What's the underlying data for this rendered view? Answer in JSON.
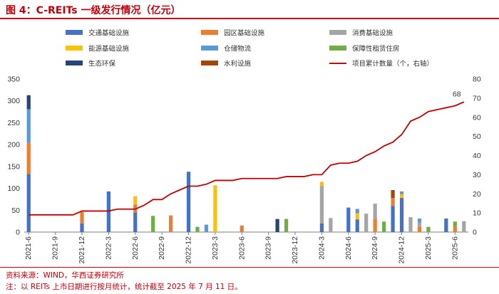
{
  "figure": {
    "title": "图 4：C-REITs 一级发行情况（亿元）",
    "source": "资料来源：WIND，华西证券研究所",
    "note": "注：以 REITs 上市日期进行按月统计，统计截至 2025 年 7 月 11 日。"
  },
  "chart_data": {
    "type": "bar",
    "stacked": true,
    "x_tick_labels": [
      "2021-6",
      "2021-9",
      "2021-12",
      "2022-3",
      "2022-6",
      "2022-9",
      "2022-12",
      "2023-3",
      "2023-6",
      "2023-9",
      "2023-12",
      "2024-3",
      "2024-6",
      "2024-9",
      "2024-12",
      "2025-3",
      "2025-6"
    ],
    "months": [
      "2021-6",
      "2021-7",
      "2021-8",
      "2021-9",
      "2021-10",
      "2021-11",
      "2021-12",
      "2022-1",
      "2022-2",
      "2022-3",
      "2022-4",
      "2022-5",
      "2022-6",
      "2022-7",
      "2022-8",
      "2022-9",
      "2022-10",
      "2022-11",
      "2022-12",
      "2023-1",
      "2023-2",
      "2023-3",
      "2023-4",
      "2023-5",
      "2023-6",
      "2023-7",
      "2023-8",
      "2023-9",
      "2023-10",
      "2023-11",
      "2023-12",
      "2024-1",
      "2024-2",
      "2024-3",
      "2024-4",
      "2024-5",
      "2024-6",
      "2024-7",
      "2024-8",
      "2024-9",
      "2024-10",
      "2024-11",
      "2024-12",
      "2025-1",
      "2025-2",
      "2025-3",
      "2025-4",
      "2025-5",
      "2025-6",
      "2025-7"
    ],
    "y_left": {
      "min": 0,
      "max": 350,
      "ticks": [
        0,
        50,
        100,
        150,
        200,
        250,
        300,
        350
      ]
    },
    "y_right": {
      "min": 0,
      "max": 80,
      "ticks": [
        0,
        10,
        20,
        30,
        40,
        50,
        60,
        70,
        80
      ]
    },
    "series": [
      {
        "name": "交通基础设施",
        "color": "#4472c4",
        "values": [
          133,
          0,
          0,
          0,
          0,
          0,
          20,
          0,
          0,
          93,
          0,
          0,
          45,
          0,
          0,
          0,
          0,
          0,
          138,
          0,
          0,
          0,
          0,
          0,
          0,
          0,
          0,
          0,
          0,
          0,
          0,
          0,
          0,
          20,
          0,
          0,
          56,
          29,
          0,
          0,
          0,
          60,
          78,
          0,
          0,
          0,
          0,
          31,
          0,
          0
        ]
      },
      {
        "name": "园区基础设施",
        "color": "#ed7d31",
        "values": [
          71,
          0,
          0,
          0,
          0,
          0,
          26,
          0,
          0,
          0,
          0,
          0,
          18,
          0,
          0,
          0,
          38,
          0,
          0,
          0,
          0,
          0,
          0,
          0,
          15,
          0,
          0,
          0,
          0,
          0,
          0,
          0,
          0,
          0,
          0,
          0,
          0,
          0,
          0,
          30,
          0,
          18,
          0,
          0,
          12,
          0,
          0,
          0,
          12,
          0
        ]
      },
      {
        "name": "消费基础设施",
        "color": "#a5a5a5",
        "values": [
          0,
          0,
          0,
          0,
          0,
          0,
          0,
          0,
          0,
          0,
          0,
          0,
          0,
          0,
          0,
          0,
          0,
          0,
          0,
          0,
          0,
          0,
          0,
          0,
          0,
          0,
          0,
          0,
          0,
          0,
          0,
          0,
          0,
          85,
          32,
          0,
          0,
          0,
          42,
          35,
          0,
          0,
          0,
          34,
          10,
          0,
          0,
          0,
          0,
          25
        ]
      },
      {
        "name": "能源基础设施",
        "color": "#ffc000",
        "values": [
          0,
          0,
          0,
          0,
          0,
          0,
          0,
          0,
          0,
          0,
          0,
          0,
          19,
          0,
          0,
          0,
          0,
          0,
          0,
          0,
          0,
          107,
          0,
          0,
          0,
          0,
          0,
          0,
          0,
          0,
          0,
          0,
          0,
          10,
          0,
          0,
          0,
          14,
          0,
          0,
          0,
          0,
          9,
          0,
          0,
          0,
          0,
          0,
          0,
          0
        ]
      },
      {
        "name": "仓储物流",
        "color": "#5b9bd5",
        "values": [
          77,
          0,
          0,
          0,
          0,
          0,
          0,
          0,
          0,
          0,
          0,
          0,
          0,
          0,
          0,
          0,
          0,
          0,
          0,
          0,
          17,
          0,
          0,
          0,
          0,
          0,
          0,
          0,
          0,
          0,
          0,
          0,
          0,
          0,
          0,
          0,
          0,
          10,
          0,
          0,
          0,
          0,
          6,
          0,
          9,
          0,
          0,
          0,
          0,
          0
        ]
      },
      {
        "name": "保障性租赁住房",
        "color": "#70ad47",
        "values": [
          0,
          0,
          0,
          0,
          0,
          0,
          0,
          0,
          0,
          0,
          0,
          0,
          0,
          0,
          37,
          0,
          0,
          0,
          0,
          12,
          0,
          0,
          0,
          0,
          0,
          0,
          0,
          0,
          0,
          30,
          0,
          0,
          0,
          0,
          0,
          0,
          0,
          0,
          0,
          0,
          24,
          0,
          0,
          0,
          0,
          12,
          0,
          0,
          12,
          0
        ]
      },
      {
        "name": "生态环保",
        "color": "#264478",
        "values": [
          32,
          0,
          0,
          0,
          0,
          0,
          0,
          0,
          0,
          0,
          0,
          0,
          0,
          0,
          0,
          0,
          0,
          0,
          0,
          0,
          0,
          0,
          0,
          0,
          0,
          0,
          0,
          0,
          30,
          0,
          0,
          0,
          0,
          0,
          0,
          0,
          0,
          0,
          0,
          0,
          0,
          0,
          0,
          0,
          0,
          0,
          0,
          0,
          0,
          0
        ]
      },
      {
        "name": "水利设施",
        "color": "#9e480e",
        "values": [
          0,
          0,
          0,
          0,
          0,
          0,
          0,
          0,
          0,
          0,
          0,
          0,
          0,
          0,
          0,
          0,
          0,
          0,
          0,
          0,
          0,
          0,
          0,
          0,
          0,
          0,
          0,
          0,
          0,
          0,
          0,
          0,
          0,
          0,
          0,
          0,
          0,
          0,
          0,
          0,
          0,
          18,
          0,
          0,
          0,
          0,
          0,
          0,
          0,
          0
        ]
      }
    ],
    "line": {
      "name": "项目累计数量（个，右轴）",
      "color": "#c00000",
      "axis": "right",
      "values": [
        9,
        9,
        9,
        9,
        9,
        9,
        11,
        11,
        11,
        11,
        12,
        12,
        12,
        14,
        17,
        17,
        20,
        22,
        24,
        24,
        25,
        27,
        27,
        27,
        28,
        28,
        28,
        28,
        28,
        29,
        29,
        29,
        30,
        30,
        35,
        36,
        36,
        37,
        40,
        42,
        45,
        47,
        51,
        58,
        60,
        63,
        64,
        65,
        66,
        68
      ],
      "end_label": "68"
    },
    "legend_position": "top",
    "grid": false
  }
}
